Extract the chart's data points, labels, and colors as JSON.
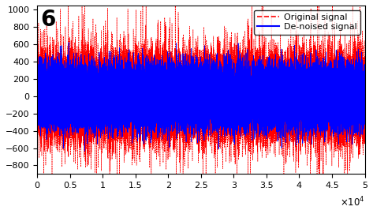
{
  "title": "6",
  "title_fontsize": 20,
  "title_fontweight": "bold",
  "xlim": [
    0,
    50000
  ],
  "ylim": [
    -900,
    1050
  ],
  "yticks": [
    -800,
    -600,
    -400,
    -200,
    0,
    200,
    400,
    600,
    800,
    1000
  ],
  "xticks": [
    0,
    5000,
    10000,
    15000,
    20000,
    25000,
    30000,
    35000,
    40000,
    45000,
    50000
  ],
  "xtick_labels": [
    "0",
    "0.5",
    "1",
    "1.5",
    "2",
    "2.5",
    "3",
    "3.5",
    "4",
    "4.5",
    "5"
  ],
  "n_points": 50000,
  "red_amplitude": 220,
  "red_spike_prob": 0.008,
  "red_spike_amplitude": 650,
  "blue_amplitude": 160,
  "legend_labels": [
    "Original signal",
    "De-noised signal"
  ],
  "red_color": "#ff0000",
  "blue_color": "#0000ff",
  "bg_color": "#ffffff",
  "seed": 42,
  "figsize": [
    4.73,
    2.71
  ],
  "dpi": 100
}
